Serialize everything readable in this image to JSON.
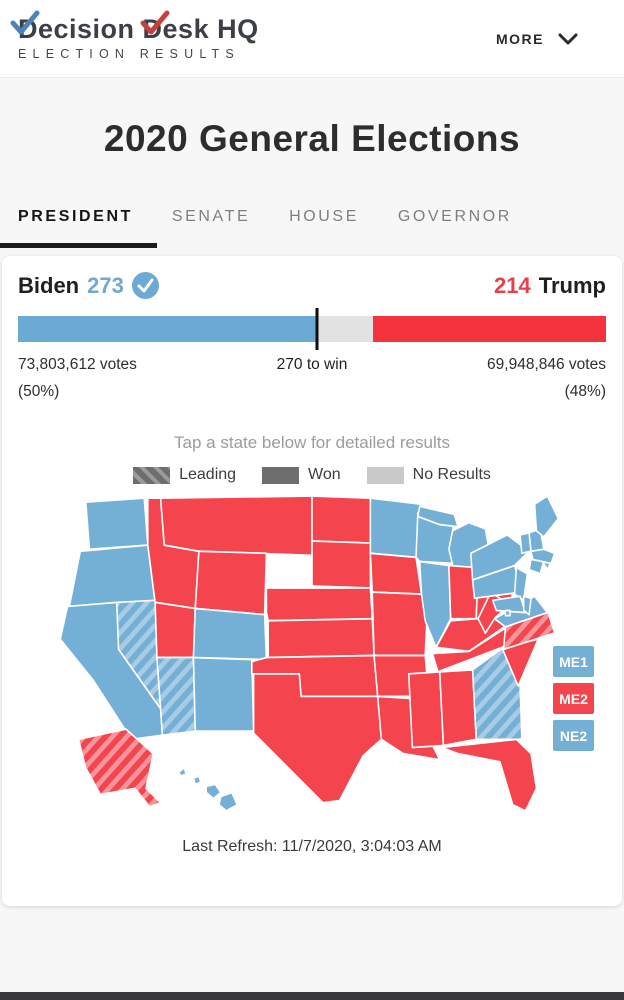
{
  "header": {
    "logo_title": "Decision Desk HQ",
    "logo_subtitle": "ELECTION RESULTS",
    "more_label": "MORE"
  },
  "page_title": "2020 General Elections",
  "tabs": [
    {
      "label": "PRESIDENT",
      "active": true
    },
    {
      "label": "SENATE",
      "active": false
    },
    {
      "label": "HOUSE",
      "active": false
    },
    {
      "label": "GOVERNOR",
      "active": false
    }
  ],
  "race": {
    "biden": {
      "name": "Biden",
      "electoral_votes": "273",
      "votes": "73,803,612 votes",
      "pct": "(50%)"
    },
    "trump": {
      "name": "Trump",
      "electoral_votes": "214",
      "votes": "69,948,846 votes",
      "pct": "(48%)"
    },
    "to_win_label": "270 to win",
    "bar": {
      "biden_style": "width:50.8%",
      "trump_style": "width:39.6%",
      "tick_style": "left:50.8%"
    }
  },
  "map": {
    "hint": "Tap a state below for detailed results",
    "legend": [
      {
        "label": "Leading"
      },
      {
        "label": "Won"
      },
      {
        "label": "No Results"
      }
    ],
    "badges": [
      {
        "label": "ME1",
        "party": "biden"
      },
      {
        "label": "ME2",
        "party": "trump"
      },
      {
        "label": "NE2",
        "party": "biden"
      }
    ],
    "states": [
      {
        "id": "WA",
        "result": "biden-won"
      },
      {
        "id": "OR",
        "result": "biden-won"
      },
      {
        "id": "CA",
        "result": "biden-won"
      },
      {
        "id": "NV",
        "result": "biden-leading"
      },
      {
        "id": "ID",
        "result": "trump-won"
      },
      {
        "id": "MT",
        "result": "trump-won"
      },
      {
        "id": "WY",
        "result": "trump-won"
      },
      {
        "id": "UT",
        "result": "trump-won"
      },
      {
        "id": "AZ",
        "result": "biden-leading"
      },
      {
        "id": "NM",
        "result": "biden-won"
      },
      {
        "id": "CO",
        "result": "biden-won"
      },
      {
        "id": "ND",
        "result": "trump-won"
      },
      {
        "id": "SD",
        "result": "trump-won"
      },
      {
        "id": "NE",
        "result": "trump-won"
      },
      {
        "id": "KS",
        "result": "trump-won"
      },
      {
        "id": "OK",
        "result": "trump-won"
      },
      {
        "id": "TX",
        "result": "trump-won"
      },
      {
        "id": "MN",
        "result": "biden-won"
      },
      {
        "id": "IA",
        "result": "trump-won"
      },
      {
        "id": "MO",
        "result": "trump-won"
      },
      {
        "id": "AR",
        "result": "trump-won"
      },
      {
        "id": "LA",
        "result": "trump-won"
      },
      {
        "id": "WI",
        "result": "biden-won"
      },
      {
        "id": "IL",
        "result": "biden-won"
      },
      {
        "id": "MS",
        "result": "trump-won"
      },
      {
        "id": "MI",
        "result": "biden-won"
      },
      {
        "id": "IN",
        "result": "trump-won"
      },
      {
        "id": "OH",
        "result": "trump-won"
      },
      {
        "id": "KY",
        "result": "trump-won"
      },
      {
        "id": "TN",
        "result": "trump-won"
      },
      {
        "id": "AL",
        "result": "trump-won"
      },
      {
        "id": "GA",
        "result": "biden-leading"
      },
      {
        "id": "SC",
        "result": "trump-won"
      },
      {
        "id": "NC",
        "result": "trump-leading"
      },
      {
        "id": "FL",
        "result": "trump-won"
      },
      {
        "id": "VA",
        "result": "biden-won"
      },
      {
        "id": "WV",
        "result": "trump-won"
      },
      {
        "id": "PA",
        "result": "biden-won"
      },
      {
        "id": "NY",
        "result": "biden-won"
      },
      {
        "id": "NJ",
        "result": "biden-won"
      },
      {
        "id": "MD",
        "result": "biden-won"
      },
      {
        "id": "DE",
        "result": "biden-won"
      },
      {
        "id": "DC",
        "result": "biden-won"
      },
      {
        "id": "CT",
        "result": "biden-won"
      },
      {
        "id": "RI",
        "result": "biden-won"
      },
      {
        "id": "MA",
        "result": "biden-won"
      },
      {
        "id": "VT",
        "result": "biden-won"
      },
      {
        "id": "NH",
        "result": "biden-won"
      },
      {
        "id": "ME",
        "result": "biden-won"
      },
      {
        "id": "AK",
        "result": "trump-leading"
      },
      {
        "id": "HI",
        "result": "biden-won"
      }
    ]
  },
  "footer": {
    "last_refresh": "Last Refresh: 11/7/2020, 3:04:03 AM"
  },
  "colors": {
    "biden": "#74afd6",
    "trump": "#f4454e",
    "biden_stripe": "#a9cbe6",
    "trump_stripe": "#f8949b",
    "logo_check_blue": "#4d83b8",
    "logo_check_red": "#c6413d"
  }
}
